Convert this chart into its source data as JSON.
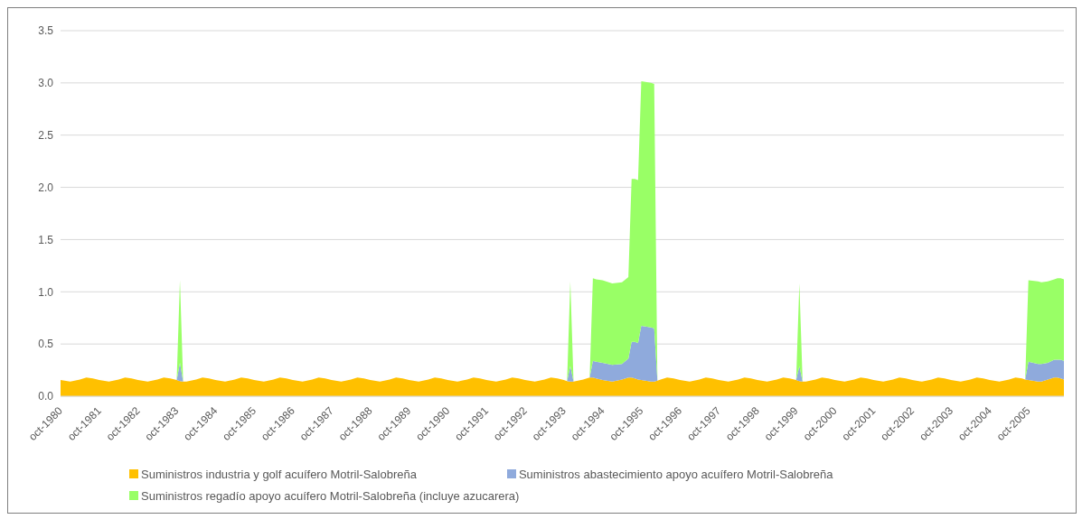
{
  "chart_data": {
    "type": "area",
    "stacked": true,
    "x": [
      "1980-10",
      "1981-01",
      "1981-04",
      "1981-06",
      "1981-08",
      "1981-10",
      "1982-01",
      "1982-04",
      "1982-06",
      "1982-08",
      "1982-10",
      "1983-01",
      "1983-04",
      "1983-06",
      "1983-08",
      "1983-10",
      "1983-11",
      "1983-12",
      "1984-01",
      "1984-04",
      "1984-06",
      "1984-08",
      "1984-10",
      "1985-01",
      "1985-04",
      "1985-06",
      "1985-08",
      "1985-10",
      "1986-01",
      "1986-04",
      "1986-06",
      "1986-08",
      "1986-10",
      "1987-01",
      "1987-04",
      "1987-06",
      "1987-08",
      "1987-10",
      "1988-01",
      "1988-04",
      "1988-06",
      "1988-08",
      "1988-10",
      "1989-01",
      "1989-04",
      "1989-06",
      "1989-08",
      "1989-10",
      "1990-01",
      "1990-04",
      "1990-06",
      "1990-08",
      "1990-10",
      "1991-01",
      "1991-04",
      "1991-06",
      "1991-08",
      "1991-10",
      "1992-01",
      "1992-04",
      "1992-06",
      "1992-08",
      "1992-10",
      "1993-01",
      "1993-04",
      "1993-06",
      "1993-08",
      "1993-10",
      "1993-11",
      "1993-12",
      "1994-01",
      "1994-04",
      "1994-06",
      "1994-07",
      "1994-08",
      "1994-10",
      "1995-01",
      "1995-04",
      "1995-06",
      "1995-07",
      "1995-08",
      "1995-09",
      "1995-10",
      "1996-01",
      "1996-02",
      "1996-03",
      "1996-04",
      "1996-06",
      "1996-08",
      "1996-10",
      "1997-01",
      "1997-04",
      "1997-06",
      "1997-08",
      "1997-10",
      "1998-01",
      "1998-04",
      "1998-06",
      "1998-08",
      "1998-10",
      "1999-01",
      "1999-04",
      "1999-06",
      "1999-08",
      "1999-10",
      "1999-11",
      "1999-12",
      "2000-01",
      "2000-04",
      "2000-06",
      "2000-08",
      "2000-10",
      "2001-01",
      "2001-04",
      "2001-06",
      "2001-08",
      "2001-10",
      "2002-01",
      "2002-04",
      "2002-06",
      "2002-08",
      "2002-10",
      "2003-01",
      "2003-04",
      "2003-06",
      "2003-08",
      "2003-10",
      "2004-01",
      "2004-04",
      "2004-06",
      "2004-08",
      "2004-10",
      "2005-01",
      "2005-04",
      "2005-06",
      "2005-08",
      "2005-09",
      "2005-10",
      "2006-01",
      "2006-02",
      "2006-04",
      "2006-06",
      "2006-07",
      "2006-08",
      "2006-09"
    ],
    "series": [
      {
        "name": "Suministros industria y golf acuífero Motril-Salobreña",
        "color": "#ffc000",
        "values": [
          0.155,
          0.14,
          0.16,
          0.18,
          0.17,
          0.155,
          0.14,
          0.16,
          0.18,
          0.17,
          0.155,
          0.14,
          0.16,
          0.18,
          0.17,
          0.155,
          0.145,
          0.14,
          0.14,
          0.16,
          0.18,
          0.17,
          0.155,
          0.14,
          0.16,
          0.18,
          0.17,
          0.155,
          0.14,
          0.16,
          0.18,
          0.17,
          0.155,
          0.14,
          0.16,
          0.18,
          0.17,
          0.155,
          0.14,
          0.16,
          0.18,
          0.17,
          0.155,
          0.14,
          0.16,
          0.18,
          0.17,
          0.155,
          0.14,
          0.16,
          0.18,
          0.17,
          0.155,
          0.14,
          0.16,
          0.18,
          0.17,
          0.155,
          0.14,
          0.16,
          0.18,
          0.17,
          0.155,
          0.14,
          0.16,
          0.18,
          0.17,
          0.155,
          0.145,
          0.14,
          0.14,
          0.16,
          0.18,
          0.18,
          0.17,
          0.155,
          0.14,
          0.16,
          0.18,
          0.18,
          0.17,
          0.16,
          0.155,
          0.14,
          0.14,
          0.15,
          0.16,
          0.18,
          0.17,
          0.155,
          0.14,
          0.16,
          0.18,
          0.17,
          0.155,
          0.14,
          0.16,
          0.18,
          0.17,
          0.155,
          0.14,
          0.16,
          0.18,
          0.17,
          0.155,
          0.145,
          0.14,
          0.14,
          0.16,
          0.18,
          0.17,
          0.155,
          0.14,
          0.16,
          0.18,
          0.17,
          0.155,
          0.14,
          0.16,
          0.18,
          0.17,
          0.155,
          0.14,
          0.16,
          0.18,
          0.17,
          0.155,
          0.14,
          0.16,
          0.18,
          0.17,
          0.155,
          0.14,
          0.16,
          0.18,
          0.17,
          0.16,
          0.155,
          0.14,
          0.14,
          0.16,
          0.18,
          0.18,
          0.17,
          0.16
        ]
      },
      {
        "name": "Suministros abastecimiento apoyo acuífero Motril-Salobreña",
        "color": "#8faadc",
        "values": [
          0,
          0,
          0,
          0,
          0,
          0,
          0,
          0,
          0,
          0,
          0,
          0,
          0,
          0,
          0,
          0,
          0.175,
          0,
          0,
          0,
          0,
          0,
          0,
          0,
          0,
          0,
          0,
          0,
          0,
          0,
          0,
          0,
          0,
          0,
          0,
          0,
          0,
          0,
          0,
          0,
          0,
          0,
          0,
          0,
          0,
          0,
          0,
          0,
          0,
          0,
          0,
          0,
          0,
          0,
          0,
          0,
          0,
          0,
          0,
          0,
          0,
          0,
          0,
          0,
          0,
          0,
          0,
          0,
          0,
          0.15,
          0,
          0,
          0,
          0.16,
          0.16,
          0.165,
          0.16,
          0.15,
          0.18,
          0.34,
          0.35,
          0.35,
          0.52,
          0.52,
          0.51,
          0,
          0,
          0,
          0,
          0,
          0,
          0,
          0,
          0,
          0,
          0,
          0,
          0,
          0,
          0,
          0,
          0,
          0,
          0,
          0,
          0.145,
          0,
          0,
          0,
          0,
          0,
          0,
          0,
          0,
          0,
          0,
          0,
          0,
          0,
          0,
          0,
          0,
          0,
          0,
          0,
          0,
          0,
          0,
          0,
          0,
          0,
          0,
          0,
          0,
          0,
          0,
          0,
          0.175,
          0.17,
          0.17,
          0.16,
          0.17,
          0.17,
          0.18,
          0.18
        ]
      },
      {
        "name": "Suministros regadío apoyo acuífero Motril-Salobreña (incluye azucarera)",
        "color": "#99ff66",
        "values": [
          0,
          0,
          0,
          0,
          0,
          0,
          0,
          0,
          0,
          0,
          0,
          0,
          0,
          0,
          0,
          0,
          0.79,
          0,
          0,
          0,
          0,
          0,
          0,
          0,
          0,
          0,
          0,
          0,
          0,
          0,
          0,
          0,
          0,
          0,
          0,
          0,
          0,
          0,
          0,
          0,
          0,
          0,
          0,
          0,
          0,
          0,
          0,
          0,
          0,
          0,
          0,
          0,
          0,
          0,
          0,
          0,
          0,
          0,
          0,
          0,
          0,
          0,
          0,
          0,
          0,
          0,
          0,
          0,
          0,
          0.81,
          0,
          0,
          0,
          0.79,
          0.79,
          0.79,
          0.78,
          0.78,
          0.78,
          1.56,
          1.56,
          1.56,
          2.34,
          2.34,
          2.34,
          0,
          0,
          0,
          0,
          0,
          0,
          0,
          0,
          0,
          0,
          0,
          0,
          0,
          0,
          0,
          0,
          0,
          0,
          0,
          0,
          0.79,
          0,
          0,
          0,
          0,
          0,
          0,
          0,
          0,
          0,
          0,
          0,
          0,
          0,
          0,
          0,
          0,
          0,
          0,
          0,
          0,
          0,
          0,
          0,
          0,
          0,
          0,
          0,
          0,
          0,
          0,
          0,
          0.78,
          0.79,
          0.78,
          0.78,
          0.77,
          0.78,
          0.78,
          0.78
        ]
      }
    ],
    "xlim": [
      "1980-10",
      "2006-09"
    ],
    "xticks": [
      {
        "value": "1980-10",
        "label": "oct-1980"
      },
      {
        "value": "1981-10",
        "label": "oct-1981"
      },
      {
        "value": "1982-10",
        "label": "oct-1982"
      },
      {
        "value": "1983-10",
        "label": "oct-1983"
      },
      {
        "value": "1984-10",
        "label": "oct-1984"
      },
      {
        "value": "1985-10",
        "label": "oct-1985"
      },
      {
        "value": "1986-10",
        "label": "oct-1986"
      },
      {
        "value": "1987-10",
        "label": "oct-1987"
      },
      {
        "value": "1988-10",
        "label": "oct-1988"
      },
      {
        "value": "1989-10",
        "label": "oct-1989"
      },
      {
        "value": "1990-10",
        "label": "oct-1990"
      },
      {
        "value": "1991-10",
        "label": "oct-1991"
      },
      {
        "value": "1992-10",
        "label": "oct-1992"
      },
      {
        "value": "1993-10",
        "label": "oct-1993"
      },
      {
        "value": "1994-10",
        "label": "oct-1994"
      },
      {
        "value": "1995-10",
        "label": "oct-1995"
      },
      {
        "value": "1996-10",
        "label": "oct-1996"
      },
      {
        "value": "1997-10",
        "label": "oct-1997"
      },
      {
        "value": "1998-10",
        "label": "oct-1998"
      },
      {
        "value": "1999-10",
        "label": "oct-1999"
      },
      {
        "value": "2000-10",
        "label": "oct-2000"
      },
      {
        "value": "2001-10",
        "label": "oct-2001"
      },
      {
        "value": "2002-10",
        "label": "oct-2002"
      },
      {
        "value": "2003-10",
        "label": "oct-2003"
      },
      {
        "value": "2004-10",
        "label": "oct-2004"
      },
      {
        "value": "2005-10",
        "label": "oct-2005"
      }
    ],
    "ylim": [
      0,
      3.5
    ],
    "yticks": [
      {
        "value": 0,
        "label": "0.0"
      },
      {
        "value": 0.5,
        "label": "0.5"
      },
      {
        "value": 1,
        "label": "1.0"
      },
      {
        "value": 1.5,
        "label": "1.5"
      },
      {
        "value": 2,
        "label": "2.0"
      },
      {
        "value": 2.5,
        "label": "2.5"
      },
      {
        "value": 3,
        "label": "3.0"
      },
      {
        "value": 3.5,
        "label": "3.5"
      }
    ],
    "grid": "y",
    "legend": "bottom"
  }
}
